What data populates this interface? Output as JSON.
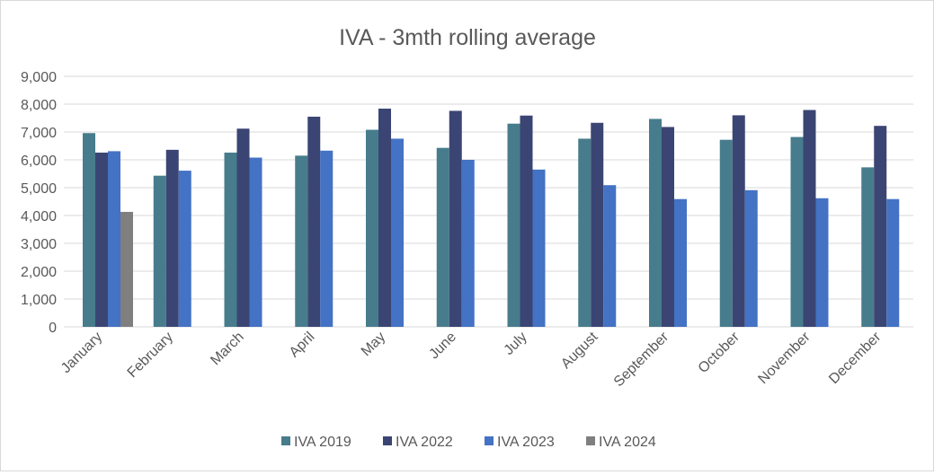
{
  "chart_data": {
    "type": "bar",
    "title": "IVA - 3mth rolling average",
    "xlabel": "",
    "ylabel": "",
    "ylim": [
      0,
      9000
    ],
    "yticks": [
      0,
      1000,
      2000,
      3000,
      4000,
      5000,
      6000,
      7000,
      8000,
      9000
    ],
    "ytick_labels": [
      "0",
      "1,000",
      "2,000",
      "3,000",
      "4,000",
      "5,000",
      "6,000",
      "7,000",
      "8,000",
      "9,000"
    ],
    "grid": true,
    "legend_position": "bottom",
    "categories": [
      "January",
      "February",
      "March",
      "April",
      "May",
      "June",
      "July",
      "August",
      "September",
      "October",
      "November",
      "December"
    ],
    "series": [
      {
        "name": "IVA 2019",
        "color": "#477C8C",
        "values": [
          6960,
          5430,
          6260,
          6150,
          7080,
          6430,
          7300,
          6760,
          7470,
          6720,
          6820,
          5730
        ]
      },
      {
        "name": "IVA 2022",
        "color": "#3B4573",
        "values": [
          6260,
          6360,
          7120,
          7550,
          7840,
          7760,
          7590,
          7330,
          7180,
          7600,
          7790,
          7220
        ]
      },
      {
        "name": "IVA 2023",
        "color": "#4472C4",
        "values": [
          6310,
          5610,
          6080,
          6330,
          6760,
          6000,
          5650,
          5090,
          4590,
          4910,
          4620,
          4590
        ]
      },
      {
        "name": "IVA 2024",
        "color": "#7F7F7F",
        "values": [
          4130,
          null,
          null,
          null,
          null,
          null,
          null,
          null,
          null,
          null,
          null,
          null
        ]
      }
    ]
  }
}
